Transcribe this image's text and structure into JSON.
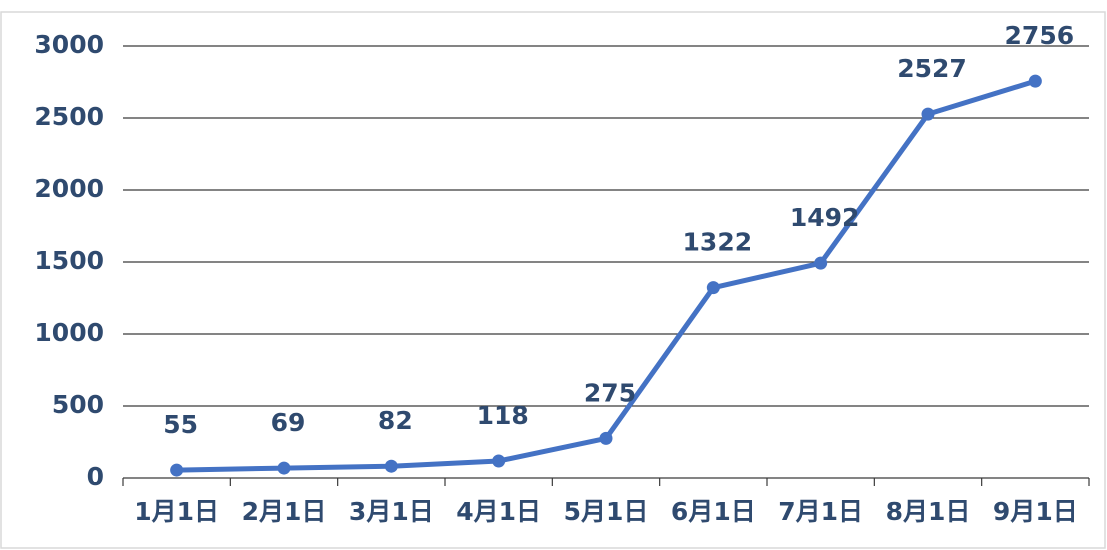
{
  "chart_data": {
    "type": "line",
    "categories": [
      "1月1日",
      "2月1日",
      "3月1日",
      "4月1日",
      "5月1日",
      "6月1日",
      "7月1日",
      "8月1日",
      "9月1日"
    ],
    "values": [
      55,
      69,
      82,
      118,
      275,
      1322,
      1492,
      2527,
      2756
    ],
    "color": "#4472c4",
    "ylim": [
      0,
      3000
    ],
    "yticks": [
      0,
      500,
      1000,
      1500,
      2000,
      2500,
      3000
    ],
    "grid": true
  }
}
